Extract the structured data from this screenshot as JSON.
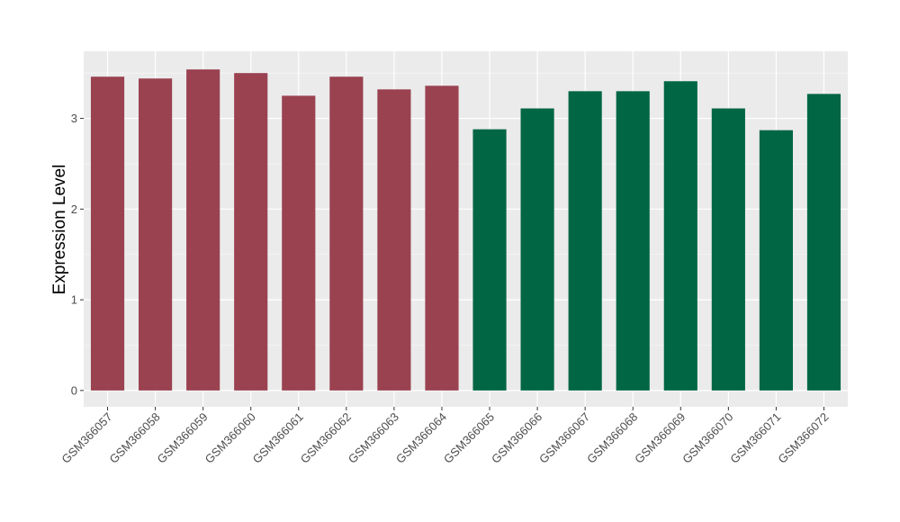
{
  "chart_data": {
    "type": "bar",
    "title": "",
    "xlabel": "",
    "ylabel": "Expression Level",
    "ylim": [
      -0.18,
      3.74
    ],
    "yticks": [
      0,
      1,
      2,
      3
    ],
    "ytick_labels": [
      "0",
      "1",
      "2",
      "3"
    ],
    "grid": true,
    "legend": "none",
    "categories": [
      "GSM366057",
      "GSM366058",
      "GSM366059",
      "GSM366060",
      "GSM366061",
      "GSM366062",
      "GSM366063",
      "GSM366064",
      "GSM366065",
      "GSM366066",
      "GSM366067",
      "GSM366068",
      "GSM366069",
      "GSM366070",
      "GSM366071",
      "GSM366072"
    ],
    "values": [
      3.46,
      3.44,
      3.54,
      3.5,
      3.25,
      3.46,
      3.32,
      3.36,
      2.88,
      3.11,
      3.3,
      3.3,
      3.41,
      3.11,
      2.87,
      3.27
    ],
    "groups": [
      0,
      0,
      0,
      0,
      0,
      0,
      0,
      0,
      1,
      1,
      1,
      1,
      1,
      1,
      1,
      1
    ],
    "colors": [
      "#9a4250",
      "#006644"
    ],
    "panel_color": "#ebebeb"
  }
}
